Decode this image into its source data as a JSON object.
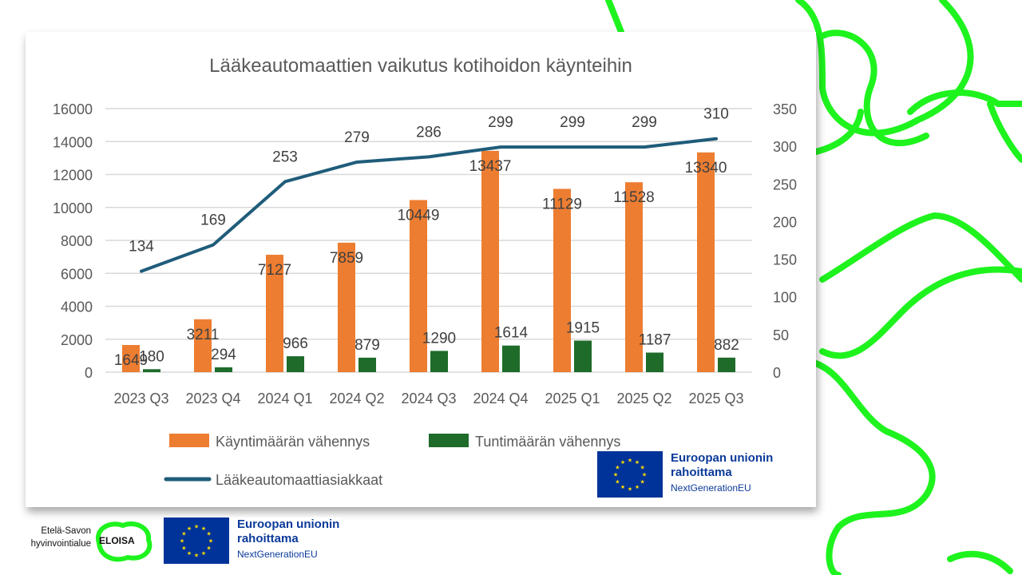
{
  "chart_data": {
    "type": "bar+line",
    "title": "Lääkeautomaattien vaikutus kotihoidon käynteihin",
    "categories": [
      "2023 Q3",
      "2023 Q4",
      "2024 Q1",
      "2024 Q2",
      "2024 Q3",
      "2024 Q4",
      "2025 Q1",
      "2025 Q2",
      "2025 Q3"
    ],
    "series": [
      {
        "name": "Käyntimäärän vähennys",
        "type": "bar",
        "axis": "left",
        "color": "#ED7D31",
        "values": [
          1649,
          3211,
          7127,
          7859,
          10449,
          13437,
          11129,
          11528,
          13340
        ]
      },
      {
        "name": "Tuntimäärän vähennys",
        "type": "bar",
        "axis": "left",
        "color": "#1E6B2A",
        "values": [
          180,
          294,
          966,
          879,
          1290,
          1614,
          1915,
          1187,
          882
        ]
      },
      {
        "name": "Lääkeautomaattiasiakkaat",
        "type": "line",
        "axis": "right",
        "color": "#1F5C7A",
        "values": [
          134,
          169,
          253,
          279,
          286,
          299,
          299,
          299,
          310
        ]
      }
    ],
    "y_left": {
      "min": 0,
      "max": 16000,
      "ticks": [
        "0",
        "2000",
        "4000",
        "6000",
        "8000",
        "10000",
        "12000",
        "14000",
        "16000"
      ]
    },
    "y_right": {
      "min": 0,
      "max": 350,
      "ticks": [
        "0",
        "50",
        "100",
        "150",
        "200",
        "250",
        "300",
        "350"
      ]
    },
    "grid": true,
    "legend": "bottom"
  },
  "eu_card": {
    "line1": "Euroopan unionin",
    "line2": "rahoittama",
    "line3": "NextGenerationEU"
  },
  "eu_footer": {
    "line1": "Euroopan unionin",
    "line2": "rahoittama",
    "line3": "NextGenerationEU"
  },
  "logo": {
    "line1": "Etelä-Savon",
    "line2": "hyvinvointialue",
    "name": "ELOISA"
  },
  "colors": {
    "accent_green": "#1EF31E",
    "eu_blue": "#003399",
    "eu_star": "#FFDD00"
  }
}
